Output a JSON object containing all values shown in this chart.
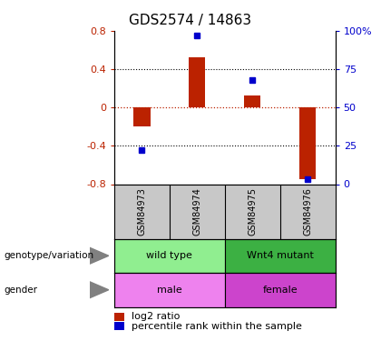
{
  "title": "GDS2574 / 14863",
  "samples": [
    "GSM84973",
    "GSM84974",
    "GSM84975",
    "GSM84976"
  ],
  "log2_ratio": [
    -0.2,
    0.52,
    0.12,
    -0.75
  ],
  "percentile_rank": [
    22,
    97,
    68,
    3
  ],
  "genotype_groups": [
    {
      "label": "wild type",
      "start": 0,
      "end": 2,
      "color": "#90EE90"
    },
    {
      "label": "Wnt4 mutant",
      "start": 2,
      "end": 4,
      "color": "#3CB043"
    }
  ],
  "gender_groups": [
    {
      "label": "male",
      "start": 0,
      "end": 2,
      "color": "#EE82EE"
    },
    {
      "label": "female",
      "start": 2,
      "end": 4,
      "color": "#CC44CC"
    }
  ],
  "bar_color_red": "#BB2200",
  "bar_color_blue": "#0000CC",
  "left_ylim": [
    -0.8,
    0.8
  ],
  "right_ylim": [
    0,
    100
  ],
  "left_yticks": [
    -0.8,
    -0.4,
    0,
    0.4,
    0.8
  ],
  "right_yticks": [
    0,
    25,
    50,
    75,
    100
  ],
  "right_yticklabels": [
    "0",
    "25",
    "50",
    "75",
    "100%"
  ],
  "background_color": "#ffffff",
  "sample_bg_color": "#C8C8C8",
  "bar_width": 0.3
}
